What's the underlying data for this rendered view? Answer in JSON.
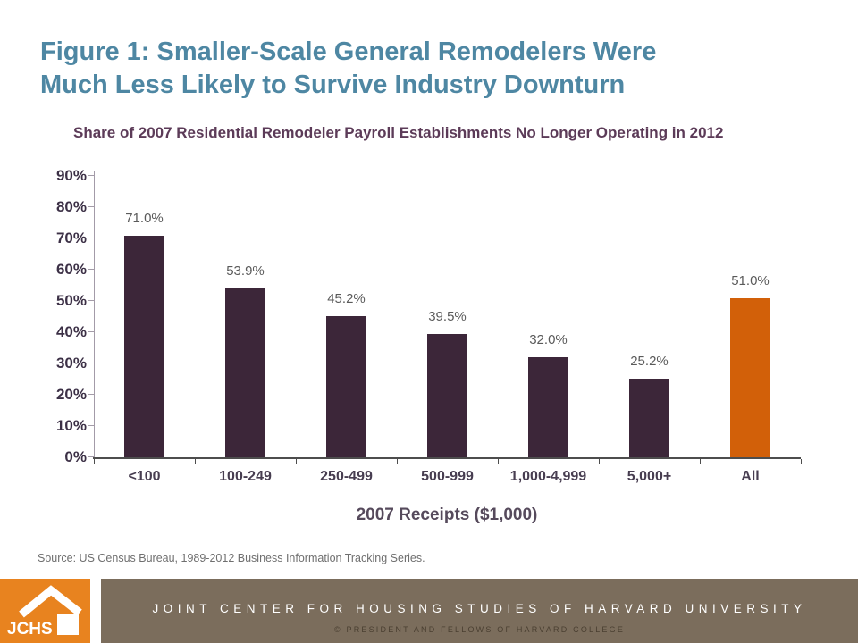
{
  "figure": {
    "title_line1": "Figure 1: Smaller-Scale General Remodelers Were",
    "title_line2": "Much Less Likely to Survive Industry Downturn"
  },
  "chart_data": {
    "type": "bar",
    "title": "Share of 2007 Residential Remodeler Payroll Establishments No Longer Operating in 2012",
    "categories": [
      "<100",
      "100-249",
      "250-499",
      "500-999",
      "1,000-4,999",
      "5,000+",
      "All"
    ],
    "values": [
      71.0,
      53.9,
      45.2,
      39.5,
      32.0,
      25.2,
      51.0
    ],
    "value_labels": [
      "71.0%",
      "53.9%",
      "45.2%",
      "39.5%",
      "32.0%",
      "25.2%",
      "51.0%"
    ],
    "xlabel": "2007 Receipts ($1,000)",
    "ylabel": "",
    "ylim": [
      0,
      90
    ],
    "ytick_values": [
      0,
      10,
      20,
      30,
      40,
      50,
      60,
      70,
      80,
      90
    ],
    "ytick_labels": [
      "0%",
      "10%",
      "20%",
      "30%",
      "40%",
      "50%",
      "60%",
      "70%",
      "80%",
      "90%"
    ],
    "grid": false,
    "legend": "none",
    "bar_color": "#3C2639",
    "highlight_category": "All",
    "highlight_color": "#D26009"
  },
  "source": {
    "text": "Source: US Census Bureau, 1989-2012 Business Information Tracking Series."
  },
  "footer": {
    "logo_text": "JCHS",
    "org_name": "JOINT CENTER FOR HOUSING STUDIES OF HARVARD UNIVERSITY",
    "copyright": "© PRESIDENT AND FELLOWS OF HARVARD COLLEGE"
  },
  "colors": {
    "title_teal": "#4E87A3",
    "subtitle_plum": "#5C3B58",
    "bar_dark": "#3C2639",
    "accent_orange": "#D26009",
    "jchs_orange": "#E8831F",
    "footer_brown": "#7B6D5C",
    "axis_text": "#3C3046",
    "value_text": "#5A5A5A"
  }
}
